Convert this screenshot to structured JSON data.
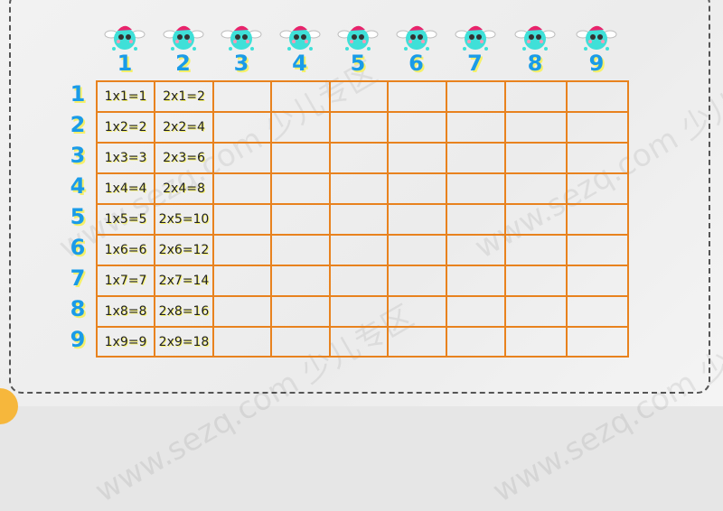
{
  "watermark": "www.sezq.com 少儿专区",
  "colors": {
    "grid": "#e8821e",
    "label": "#1a9be8",
    "highlight": "#f5f06a"
  },
  "column_headers": [
    "1",
    "2",
    "3",
    "4",
    "5",
    "6",
    "7",
    "8",
    "9"
  ],
  "row_headers": [
    "1",
    "2",
    "3",
    "4",
    "5",
    "6",
    "7",
    "8",
    "9"
  ],
  "rows": [
    [
      "1x1=1",
      "2x1=2",
      "",
      "",
      "",
      "",
      "",
      "",
      ""
    ],
    [
      "1x2=2",
      "2x2=4",
      "",
      "",
      "",
      "",
      "",
      "",
      ""
    ],
    [
      "1x3=3",
      "2x3=6",
      "",
      "",
      "",
      "",
      "",
      "",
      ""
    ],
    [
      "1x4=4",
      "2x4=8",
      "",
      "",
      "",
      "",
      "",
      "",
      ""
    ],
    [
      "1x5=5",
      "2x5=10",
      "",
      "",
      "",
      "",
      "",
      "",
      ""
    ],
    [
      "1x6=6",
      "2x6=12",
      "",
      "",
      "",
      "",
      "",
      "",
      ""
    ],
    [
      "1x7=7",
      "2x7=14",
      "",
      "",
      "",
      "",
      "",
      "",
      ""
    ],
    [
      "1x8=8",
      "2x8=16",
      "",
      "",
      "",
      "",
      "",
      "",
      ""
    ],
    [
      "1x9=9",
      "2x9=18",
      "",
      "",
      "",
      "",
      "",
      "",
      ""
    ]
  ]
}
